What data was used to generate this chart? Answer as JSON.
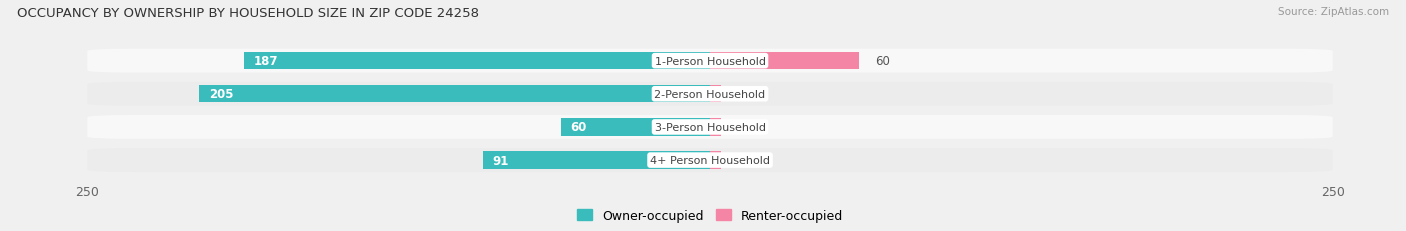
{
  "title": "OCCUPANCY BY OWNERSHIP BY HOUSEHOLD SIZE IN ZIP CODE 24258",
  "source": "Source: ZipAtlas.com",
  "categories": [
    "1-Person Household",
    "2-Person Household",
    "3-Person Household",
    "4+ Person Household"
  ],
  "owner_values": [
    187,
    205,
    60,
    91
  ],
  "renter_values": [
    60,
    0,
    0,
    0
  ],
  "owner_color": "#3BBCBC",
  "renter_color": "#F585A5",
  "axis_max": 250,
  "background_color": "#f0f0f0",
  "row_light": "#f8f8f8",
  "row_dark": "#ececec",
  "label_bg_color": "#ffffff",
  "title_fontsize": 9.5,
  "tick_fontsize": 9,
  "legend_fontsize": 9,
  "bar_height": 0.52
}
